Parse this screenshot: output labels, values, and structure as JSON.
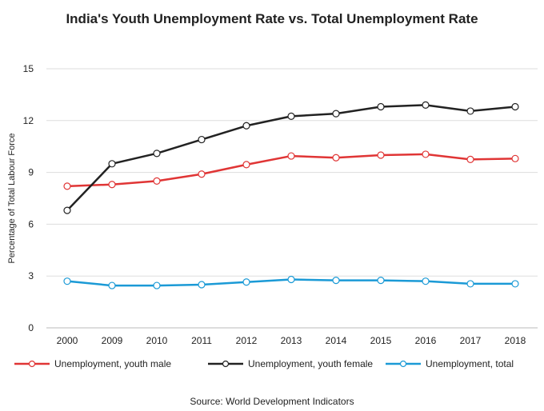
{
  "chart_data": {
    "type": "line",
    "title": "India's Youth Unemployment Rate vs. Total Unemployment Rate",
    "xlabel": "",
    "ylabel": "Percentage of Total Labour Force",
    "categories": [
      "2000",
      "2009",
      "2010",
      "2011",
      "2012",
      "2013",
      "2014",
      "2015",
      "2016",
      "2017",
      "2018"
    ],
    "yticks": [
      "0",
      "3",
      "6",
      "9",
      "12",
      "15"
    ],
    "ylim": [
      0,
      15
    ],
    "grid": true,
    "legend_position": "bottom",
    "series": [
      {
        "name": "Unemployment, youth male",
        "color": "#e03535",
        "values": [
          8.2,
          8.3,
          8.5,
          8.9,
          9.45,
          9.95,
          9.85,
          10.0,
          10.05,
          9.75,
          9.8
        ]
      },
      {
        "name": "Unemployment, youth female",
        "color": "#222222",
        "values": [
          6.8,
          9.5,
          10.1,
          10.9,
          11.7,
          12.25,
          12.4,
          12.8,
          12.9,
          12.55,
          12.8
        ]
      },
      {
        "name": "Unemployment, total",
        "color": "#1b9ad6",
        "values": [
          2.7,
          2.45,
          2.45,
          2.5,
          2.65,
          2.8,
          2.75,
          2.75,
          2.7,
          2.55,
          2.55
        ]
      }
    ],
    "source": "Source: World Development Indicators"
  }
}
